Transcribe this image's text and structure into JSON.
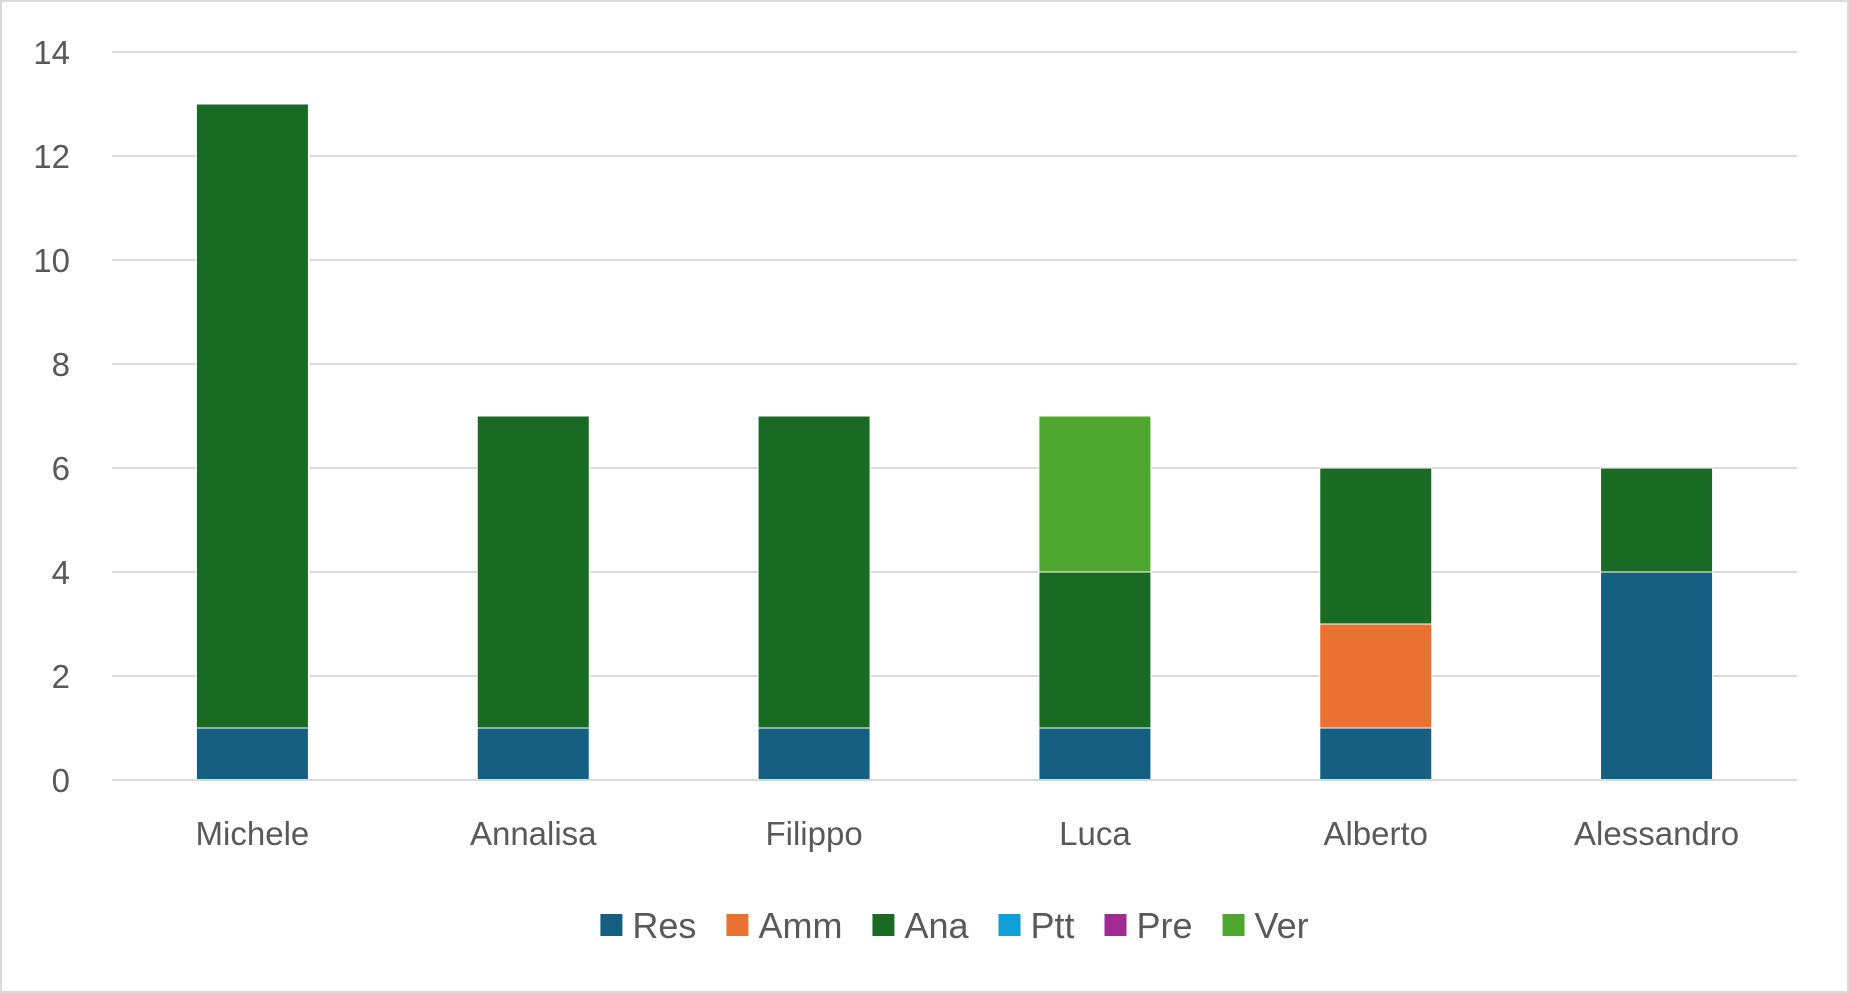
{
  "chart_data": {
    "type": "bar",
    "stacked": true,
    "categories": [
      "Michele",
      "Annalisa",
      "Filippo",
      "Luca",
      "Alberto",
      "Alessandro"
    ],
    "series": [
      {
        "name": "Res",
        "color": "#156082",
        "values": [
          1,
          1,
          1,
          1,
          1,
          4
        ]
      },
      {
        "name": "Amm",
        "color": "#E97132",
        "values": [
          0,
          0,
          0,
          0,
          2,
          0
        ]
      },
      {
        "name": "Ana",
        "color": "#196B24",
        "values": [
          12,
          6,
          6,
          3,
          3,
          2
        ]
      },
      {
        "name": "Ptt",
        "color": "#0F9ED5",
        "values": [
          0,
          0,
          0,
          0,
          0,
          0
        ]
      },
      {
        "name": "Pre",
        "color": "#A02B93",
        "values": [
          0,
          0,
          0,
          0,
          0,
          0
        ]
      },
      {
        "name": "Ver",
        "color": "#4EA72E",
        "values": [
          0,
          0,
          0,
          3,
          0,
          0
        ]
      }
    ],
    "title": "",
    "xlabel": "",
    "ylabel": "",
    "ylim": [
      0,
      14
    ],
    "yticks": [
      0,
      2,
      4,
      6,
      8,
      10,
      12,
      14
    ],
    "grid": true,
    "legend_position": "bottom"
  }
}
